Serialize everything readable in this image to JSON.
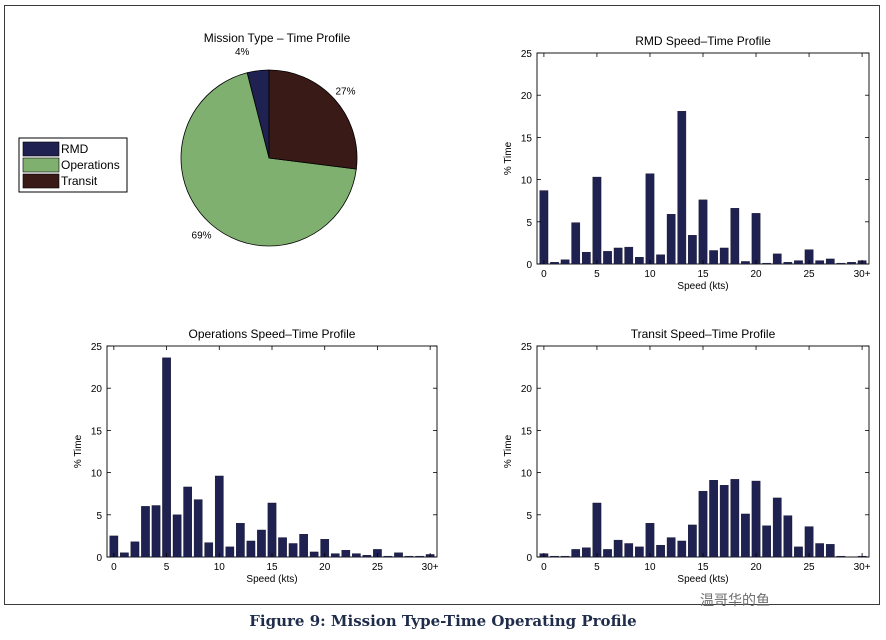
{
  "caption": "Figure 9: Mission Type-Time Operating Profile",
  "watermark": "温哥华的鱼",
  "colors": {
    "bar": "#1f2150",
    "rmd": "#1f2150",
    "operations": "#7fb070",
    "transit": "#3a1a16",
    "axis": "#000000"
  },
  "chart_data": [
    {
      "type": "pie",
      "title": "Mission Type – Time Profile",
      "legend": [
        "RMD",
        "Operations",
        "Transit"
      ],
      "legend_location": "left",
      "slices": [
        {
          "label": "RMD",
          "value": 4,
          "text": "4%",
          "color": "#1f2150"
        },
        {
          "label": "Operations",
          "value": 69,
          "text": "69%",
          "color": "#7fb070"
        },
        {
          "label": "Transit",
          "value": 27,
          "text": "27%",
          "color": "#3a1a16"
        }
      ]
    },
    {
      "type": "bar",
      "title": "RMD Speed–Time Profile",
      "xlabel": "Speed (kts)",
      "ylabel": "% Time",
      "ylim": [
        0,
        25
      ],
      "yticks": [
        "0",
        "5",
        "10",
        "15",
        "20",
        "25"
      ],
      "xticks": [
        "0",
        "5",
        "10",
        "15",
        "20",
        "25",
        "30+"
      ],
      "categories": [
        0,
        1,
        2,
        3,
        4,
        5,
        6,
        7,
        8,
        9,
        10,
        11,
        12,
        13,
        14,
        15,
        16,
        17,
        18,
        19,
        20,
        21,
        22,
        23,
        24,
        25,
        26,
        27,
        28,
        29,
        30
      ],
      "values": [
        8.7,
        0.2,
        0.5,
        4.9,
        1.4,
        10.3,
        1.5,
        1.9,
        2.0,
        0.8,
        10.7,
        1.1,
        5.9,
        18.1,
        3.4,
        7.6,
        1.6,
        1.9,
        6.6,
        0.3,
        6.0,
        0.1,
        1.2,
        0.2,
        0.4,
        1.7,
        0.4,
        0.6,
        0.1,
        0.2,
        0.4
      ]
    },
    {
      "type": "bar",
      "title": "Operations Speed–Time Profile",
      "xlabel": "Speed (kts)",
      "ylabel": "% Time",
      "ylim": [
        0,
        25
      ],
      "yticks": [
        "0",
        "5",
        "10",
        "15",
        "20",
        "25"
      ],
      "xticks": [
        "0",
        "5",
        "10",
        "15",
        "20",
        "25",
        "30+"
      ],
      "categories": [
        0,
        1,
        2,
        3,
        4,
        5,
        6,
        7,
        8,
        9,
        10,
        11,
        12,
        13,
        14,
        15,
        16,
        17,
        18,
        19,
        20,
        21,
        22,
        23,
        24,
        25,
        26,
        27,
        28,
        29,
        30
      ],
      "values": [
        2.5,
        0.5,
        1.8,
        6.0,
        6.1,
        23.6,
        5.0,
        8.3,
        6.8,
        1.7,
        9.6,
        1.2,
        4.0,
        1.9,
        3.2,
        6.4,
        2.3,
        1.6,
        2.7,
        0.6,
        2.1,
        0.4,
        0.8,
        0.4,
        0.2,
        0.9,
        0.1,
        0.5,
        0.1,
        0.1,
        0.3
      ]
    },
    {
      "type": "bar",
      "title": "Transit Speed–Time Profile",
      "xlabel": "Speed (kts)",
      "ylabel": "% Time",
      "ylim": [
        0,
        25
      ],
      "yticks": [
        "0",
        "5",
        "10",
        "15",
        "20",
        "25"
      ],
      "xticks": [
        "0",
        "5",
        "10",
        "15",
        "20",
        "25",
        "30+"
      ],
      "categories": [
        0,
        1,
        2,
        3,
        4,
        5,
        6,
        7,
        8,
        9,
        10,
        11,
        12,
        13,
        14,
        15,
        16,
        17,
        18,
        19,
        20,
        21,
        22,
        23,
        24,
        25,
        26,
        27,
        28,
        29,
        30
      ],
      "values": [
        0.4,
        0.1,
        0.1,
        0.9,
        1.1,
        6.4,
        0.9,
        2.0,
        1.6,
        1.2,
        4.0,
        1.4,
        2.3,
        1.9,
        3.8,
        7.8,
        9.1,
        8.5,
        9.2,
        5.1,
        9.0,
        3.7,
        7.0,
        4.9,
        1.2,
        3.6,
        1.6,
        1.5,
        0.1,
        0.0,
        0.1
      ]
    }
  ]
}
